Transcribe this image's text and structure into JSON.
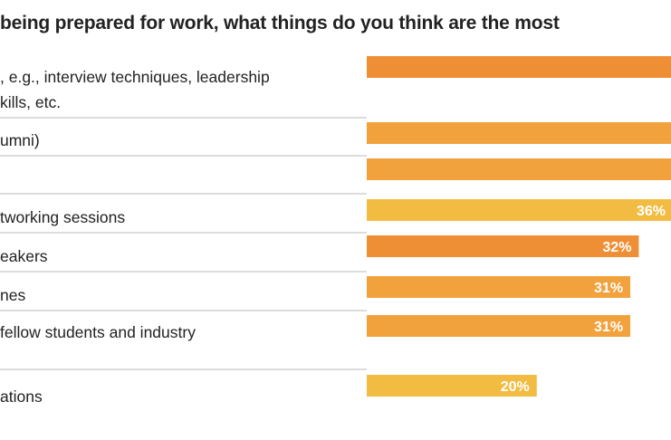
{
  "chart_data": {
    "type": "bar",
    "orientation": "horizontal",
    "title": "being prepared for work, what things do you think are the most",
    "categories": [
      [
        ", e.g., interview techniques, leadership",
        "kills, etc."
      ],
      [
        "umni)"
      ],
      [
        ""
      ],
      [
        "tworking sessions"
      ],
      [
        "eakers"
      ],
      [
        "nes"
      ],
      [
        "fellow students and industry"
      ],
      [
        "ations"
      ]
    ],
    "values": [
      null,
      null,
      null,
      36,
      32,
      31,
      31,
      20
    ],
    "value_labels": [
      "",
      "",
      "",
      "36%",
      "32%",
      "31%",
      "31%",
      "20%"
    ],
    "bar_colors": [
      "#ef8f35",
      "#f2a23c",
      "#f2a23c",
      "#f2bc42",
      "#ef8f35",
      "#f2a23c",
      "#f2a23c",
      "#f2bc42"
    ],
    "xlim": [
      0,
      36
    ],
    "grid": false,
    "legend": "none"
  }
}
